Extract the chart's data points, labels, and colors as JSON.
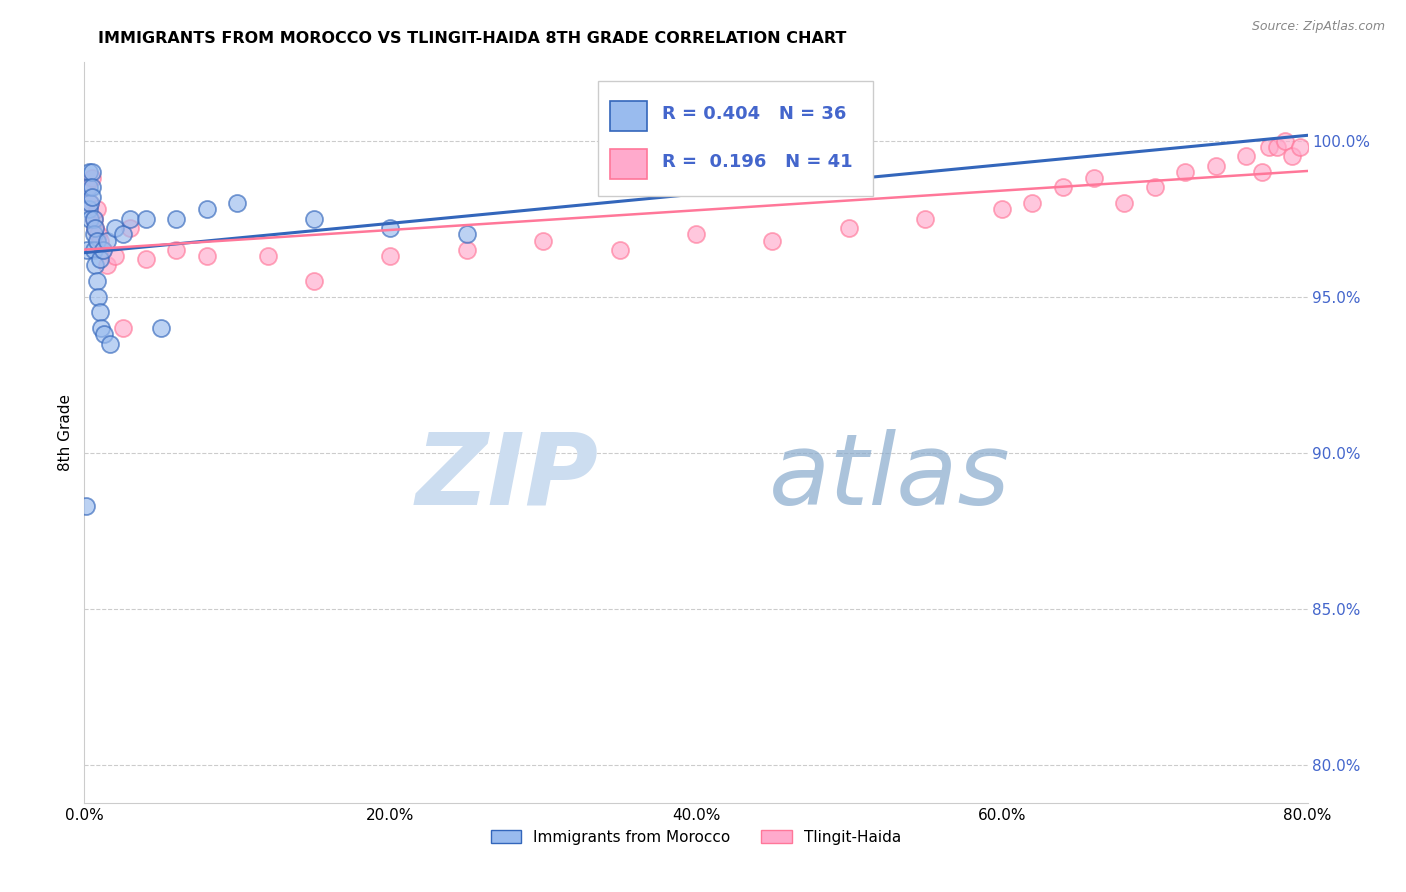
{
  "title": "IMMIGRANTS FROM MOROCCO VS TLINGIT-HAIDA 8TH GRADE CORRELATION CHART",
  "source": "Source: ZipAtlas.com",
  "ylabel": "8th Grade",
  "legend1_label": "Immigrants from Morocco",
  "legend2_label": "Tlingit-Haida",
  "R1": 0.404,
  "N1": 36,
  "R2": 0.196,
  "N2": 41,
  "xlim": [
    0.0,
    0.8
  ],
  "ylim": [
    0.788,
    1.025
  ],
  "ytick_labels": [
    "80.0%",
    "85.0%",
    "90.0%",
    "95.0%",
    "100.0%"
  ],
  "ytick_values": [
    0.8,
    0.85,
    0.9,
    0.95,
    1.0
  ],
  "xtick_labels": [
    "0.0%",
    "20.0%",
    "40.0%",
    "60.0%",
    "80.0%"
  ],
  "xtick_values": [
    0.0,
    0.2,
    0.4,
    0.6,
    0.8
  ],
  "color_blue": "#99BBEE",
  "color_pink": "#FFAACC",
  "color_blue_line": "#3366BB",
  "color_pink_line": "#FF7799",
  "color_ytick_label": "#4466CC",
  "morocco_x": [
    0.001,
    0.002,
    0.003,
    0.003,
    0.003,
    0.004,
    0.004,
    0.005,
    0.005,
    0.005,
    0.006,
    0.006,
    0.006,
    0.007,
    0.007,
    0.008,
    0.008,
    0.009,
    0.01,
    0.01,
    0.011,
    0.012,
    0.013,
    0.015,
    0.017,
    0.02,
    0.025,
    0.03,
    0.04,
    0.05,
    0.06,
    0.08,
    0.1,
    0.15,
    0.2,
    0.25
  ],
  "morocco_y": [
    0.883,
    0.965,
    0.99,
    0.985,
    0.978,
    0.98,
    0.975,
    0.99,
    0.985,
    0.982,
    0.975,
    0.97,
    0.965,
    0.972,
    0.96,
    0.968,
    0.955,
    0.95,
    0.962,
    0.945,
    0.94,
    0.965,
    0.938,
    0.968,
    0.935,
    0.972,
    0.97,
    0.975,
    0.975,
    0.94,
    0.975,
    0.978,
    0.98,
    0.975,
    0.972,
    0.97
  ],
  "tlingit_x": [
    0.002,
    0.004,
    0.005,
    0.006,
    0.007,
    0.008,
    0.009,
    0.01,
    0.012,
    0.015,
    0.02,
    0.025,
    0.03,
    0.04,
    0.06,
    0.08,
    0.12,
    0.15,
    0.2,
    0.25,
    0.3,
    0.35,
    0.4,
    0.45,
    0.5,
    0.55,
    0.6,
    0.62,
    0.64,
    0.66,
    0.68,
    0.7,
    0.72,
    0.74,
    0.76,
    0.77,
    0.775,
    0.78,
    0.785,
    0.79,
    0.795
  ],
  "tlingit_y": [
    0.985,
    0.98,
    0.988,
    0.975,
    0.972,
    0.978,
    0.97,
    0.968,
    0.965,
    0.96,
    0.963,
    0.94,
    0.972,
    0.962,
    0.965,
    0.963,
    0.963,
    0.955,
    0.963,
    0.965,
    0.968,
    0.965,
    0.97,
    0.968,
    0.972,
    0.975,
    0.978,
    0.98,
    0.985,
    0.988,
    0.98,
    0.985,
    0.99,
    0.992,
    0.995,
    0.99,
    0.998,
    0.998,
    1.0,
    0.995,
    0.998
  ]
}
